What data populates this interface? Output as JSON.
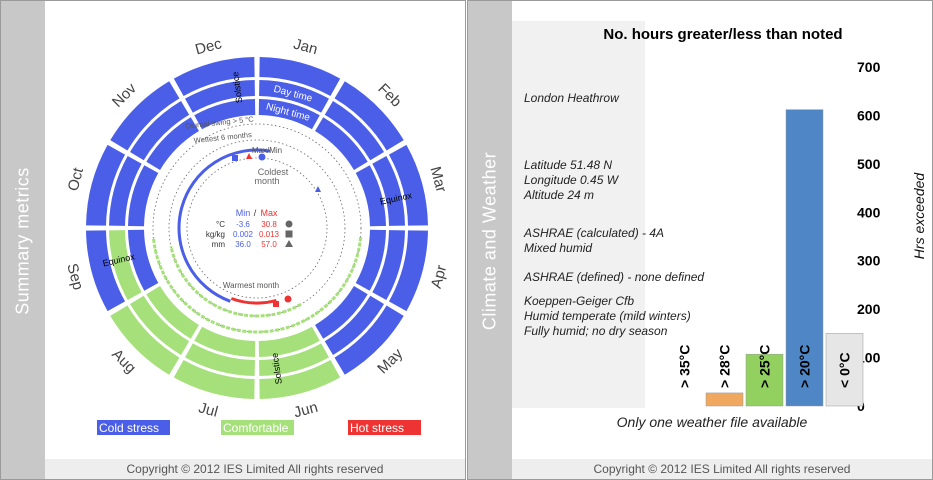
{
  "left": {
    "side_title": "Summary metrics",
    "copyright": "Copyright © 2012 IES Limited All rights reserved",
    "months": [
      "Jan",
      "Feb",
      "Mar",
      "Apr",
      "May",
      "Jun",
      "Jul",
      "Aug",
      "Sep",
      "Oct",
      "Nov",
      "Dec"
    ],
    "outer_ring_status": [
      "cold",
      "cold",
      "cold",
      "cold",
      "cold",
      "comfortable",
      "comfortable",
      "comfortable",
      "cold",
      "cold",
      "cold",
      "cold"
    ],
    "day_ring_status": [
      "cold",
      "cold",
      "cold",
      "cold",
      "cold",
      "comfortable",
      "comfortable",
      "comfortable",
      "comfortable",
      "cold",
      "cold",
      "cold"
    ],
    "night_ring_status": [
      "cold",
      "cold",
      "cold",
      "cold",
      "cold",
      "comfortable",
      "comfortable",
      "comfortable",
      "cold",
      "cold",
      "cold",
      "cold"
    ],
    "ring_labels": {
      "day": "Day time",
      "night": "Night time"
    },
    "events": {
      "solstice": "Solstice",
      "equinox": "Equinox"
    },
    "inner_labels": {
      "diurnal": "Diurnal swing > 5 °C",
      "wettest": "Wettest 6 months",
      "maxmin": "Max/Min",
      "coldest": "Coldest month",
      "warmest": "Warmest month"
    },
    "stats": {
      "min_label": "Min",
      "slash": "/",
      "max_label": "Max",
      "rows": [
        {
          "unit": "°C",
          "min": "-3.6",
          "max": "30.8",
          "symbol": "circle"
        },
        {
          "unit": "kg/kg",
          "min": "0.002",
          "max": "0.013",
          "symbol": "square"
        },
        {
          "unit": "mm",
          "min": "36.0",
          "max": "57.0",
          "symbol": "triangle"
        }
      ]
    },
    "legend": [
      {
        "label": "Cold stress",
        "color": "#4a5ee8"
      },
      {
        "label": "Comfortable",
        "color": "#a6e07a"
      },
      {
        "label": "Hot stress",
        "color": "#ee3333"
      }
    ],
    "colors": {
      "cold": "#4a5ee8",
      "comfortable": "#a6e07a",
      "hot": "#ee3333"
    }
  },
  "right": {
    "side_title": "Climate and Weather",
    "copyright": "Copyright © 2012 IES Limited All rights reserved",
    "info": {
      "station": "London Heathrow",
      "latitude": "Latitude 51.48 N",
      "longitude": "Longitude 0.45 W",
      "altitude": "Altitude 24 m",
      "ashrae_calc": "ASHRAE (calculated) - 4A",
      "ashrae_calc_desc": "Mixed humid",
      "ashrae_defined": "ASHRAE (defined) - none defined",
      "koeppen": "Koeppen-Geiger Cfb",
      "koeppen_desc1": "Humid temperate (mild winters)",
      "koeppen_desc2": "Fully humid; no dry season"
    },
    "note": "Only one weather file available"
  },
  "chart_data": {
    "type": "bar",
    "title": "No. hours greater/less than noted",
    "ylabel": "Hrs exceeded",
    "xlabel": "",
    "ylim": [
      0,
      700
    ],
    "yticks": [
      0,
      100,
      200,
      300,
      400,
      500,
      600,
      700
    ],
    "categories": [
      "> 35°C",
      "> 28°C",
      "> 25°C",
      "> 20°C",
      "< 0°C"
    ],
    "values": [
      0,
      27,
      107,
      612,
      150
    ],
    "colors": [
      "#e8a050",
      "#f0a860",
      "#92d060",
      "#4f86c6",
      "#e6e6e6"
    ],
    "grid": false
  }
}
